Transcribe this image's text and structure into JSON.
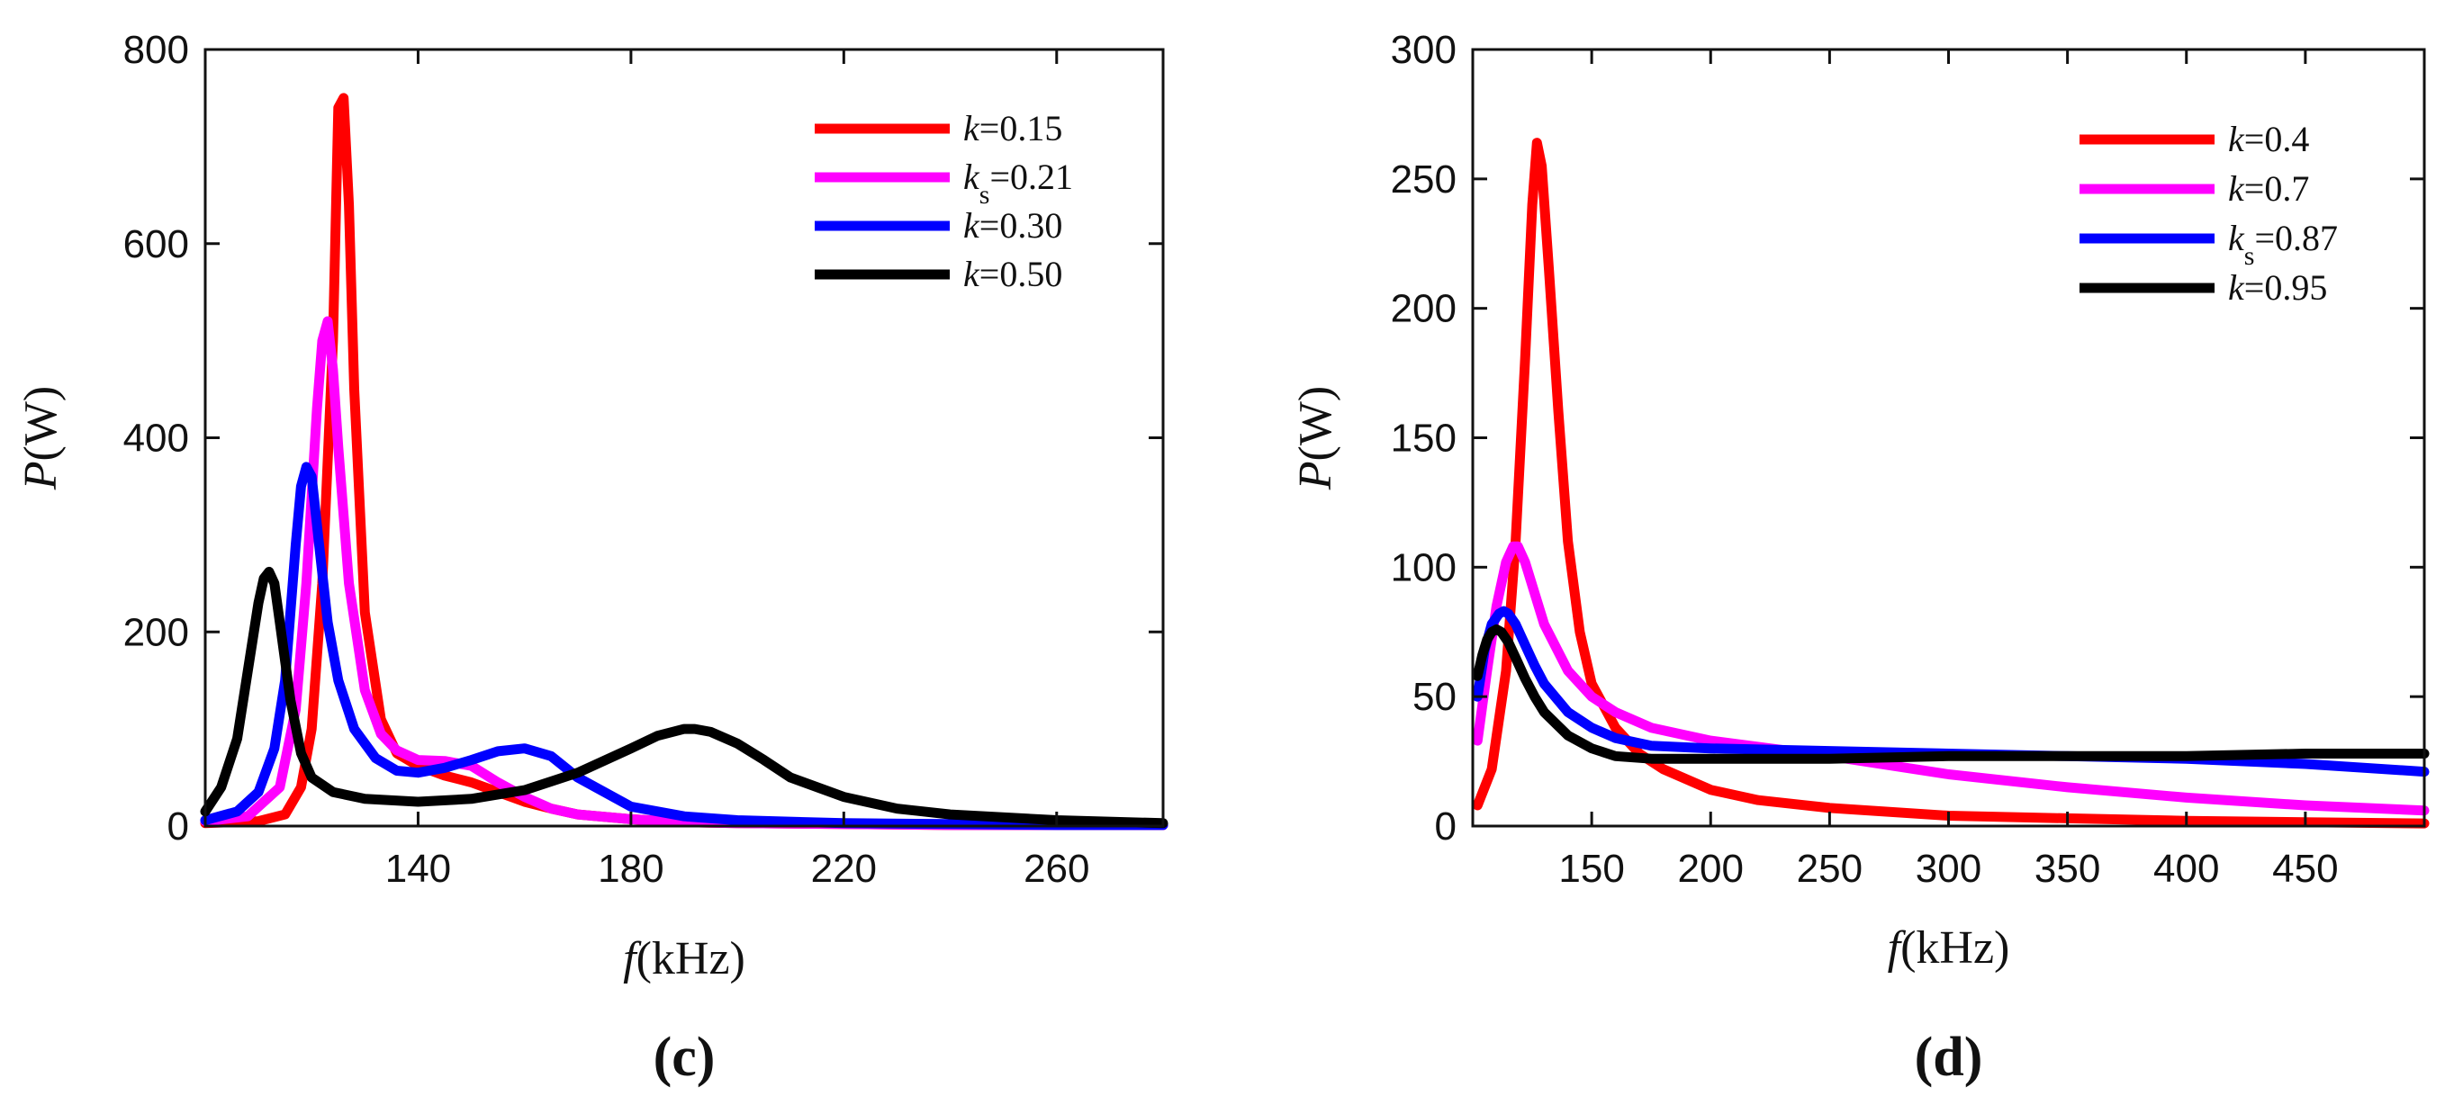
{
  "chart_data": [
    {
      "type": "line",
      "panel": "(c)",
      "xlabel_var": "f",
      "xlabel_unit": "(kHz)",
      "ylabel_var": "P",
      "ylabel_unit": "(W)",
      "xlim": [
        100,
        280
      ],
      "ylim": [
        0,
        800
      ],
      "xticks": [
        140,
        180,
        220,
        260
      ],
      "yticks": [
        0,
        200,
        400,
        600,
        800
      ],
      "legend_position": "top-right",
      "series": [
        {
          "name": "k=0.15",
          "legend_var": "k",
          "legend_sub": "",
          "legend_value": "=0.15",
          "color": "#ff0000",
          "x": [
            100,
            110,
            115,
            118,
            120,
            122,
            124,
            125,
            126,
            127,
            128,
            130,
            133,
            136,
            140,
            145,
            150,
            155,
            160,
            165,
            170,
            180,
            190,
            200,
            220,
            240,
            260,
            280
          ],
          "y": [
            3,
            5,
            12,
            40,
            100,
            250,
            500,
            740,
            750,
            640,
            450,
            220,
            110,
            75,
            62,
            52,
            45,
            35,
            25,
            18,
            12,
            7,
            4,
            3,
            2,
            1,
            1,
            1
          ]
        },
        {
          "name": "ks=0.21",
          "legend_var": "k",
          "legend_sub": "s",
          "legend_value": "=0.21",
          "color": "#ff00ff",
          "x": [
            100,
            108,
            114,
            117,
            119,
            121,
            122,
            123,
            124,
            125,
            127,
            130,
            133,
            136,
            140,
            145,
            150,
            155,
            160,
            165,
            170,
            180,
            190,
            200,
            220,
            240,
            260,
            280
          ],
          "y": [
            5,
            10,
            40,
            120,
            250,
            430,
            500,
            520,
            470,
            390,
            250,
            140,
            95,
            78,
            68,
            67,
            62,
            45,
            30,
            18,
            12,
            7,
            4,
            3,
            2,
            1,
            1,
            1
          ]
        },
        {
          "name": "k=0.30",
          "legend_var": "k",
          "legend_sub": "",
          "legend_value": "=0.30",
          "color": "#0000ff",
          "x": [
            100,
            106,
            110,
            113,
            115,
            116,
            117,
            118,
            119,
            120,
            121,
            123,
            125,
            128,
            132,
            136,
            140,
            145,
            150,
            155,
            160,
            165,
            170,
            180,
            190,
            200,
            220,
            240,
            260,
            280
          ],
          "y": [
            6,
            15,
            35,
            80,
            150,
            220,
            290,
            350,
            370,
            360,
            310,
            210,
            150,
            100,
            70,
            57,
            55,
            60,
            68,
            77,
            80,
            72,
            50,
            20,
            10,
            6,
            3,
            2,
            1,
            1
          ]
        },
        {
          "name": "k=0.50",
          "legend_var": "k",
          "legend_sub": "",
          "legend_value": "=0.50",
          "color": "#000000",
          "x": [
            100,
            103,
            106,
            108,
            110,
            111,
            112,
            113,
            114,
            116,
            118,
            120,
            124,
            130,
            140,
            150,
            160,
            170,
            180,
            185,
            190,
            192,
            195,
            200,
            205,
            210,
            220,
            230,
            240,
            260,
            280
          ],
          "y": [
            15,
            40,
            90,
            160,
            230,
            255,
            262,
            250,
            210,
            130,
            75,
            50,
            35,
            28,
            25,
            28,
            37,
            55,
            80,
            93,
            100,
            100,
            97,
            85,
            68,
            50,
            30,
            18,
            12,
            6,
            3
          ]
        }
      ]
    },
    {
      "type": "line",
      "panel": "(d)",
      "xlabel_var": "f",
      "xlabel_unit": "(kHz)",
      "ylabel_var": "P",
      "ylabel_unit": "(W)",
      "xlim": [
        100,
        500
      ],
      "ylim": [
        0,
        300
      ],
      "xticks": [
        150,
        200,
        250,
        300,
        350,
        400,
        450
      ],
      "yticks": [
        0,
        50,
        100,
        150,
        200,
        250,
        300
      ],
      "legend_position": "top-right",
      "series": [
        {
          "name": "k=0.4",
          "legend_var": "k",
          "legend_sub": "",
          "legend_value": "=0.4",
          "color": "#ff0000",
          "x": [
            102,
            108,
            114,
            118,
            122,
            125,
            127,
            129,
            132,
            136,
            140,
            145,
            150,
            160,
            170,
            180,
            200,
            220,
            250,
            300,
            350,
            400,
            450,
            500
          ],
          "y": [
            8,
            22,
            60,
            110,
            180,
            240,
            264,
            255,
            215,
            160,
            110,
            75,
            55,
            38,
            28,
            22,
            14,
            10,
            7,
            4,
            3,
            2,
            1.5,
            1
          ]
        },
        {
          "name": "k=0.7",
          "legend_var": "k",
          "legend_sub": "",
          "legend_value": "=0.7",
          "color": "#ff00ff",
          "x": [
            102,
            106,
            110,
            114,
            117,
            119,
            122,
            126,
            130,
            140,
            150,
            160,
            175,
            200,
            225,
            250,
            300,
            350,
            400,
            450,
            500
          ],
          "y": [
            33,
            60,
            85,
            102,
            108,
            108,
            102,
            90,
            78,
            60,
            50,
            44,
            38,
            33,
            30,
            27,
            20,
            15,
            11,
            8,
            6
          ]
        },
        {
          "name": "ks=0.87",
          "legend_var": "k",
          "legend_sub": "s",
          "legend_value": "=0.87",
          "color": "#0000ff",
          "x": [
            102,
            105,
            108,
            111,
            113,
            115,
            118,
            122,
            126,
            130,
            140,
            150,
            160,
            175,
            200,
            250,
            300,
            350,
            400,
            450,
            500
          ],
          "y": [
            50,
            68,
            78,
            82,
            83,
            82,
            78,
            70,
            62,
            55,
            44,
            38,
            34,
            31,
            30,
            29,
            28,
            27,
            26,
            24,
            21
          ]
        },
        {
          "name": "k=0.95",
          "legend_var": "k",
          "legend_sub": "",
          "legend_value": "=0.95",
          "color": "#000000",
          "x": [
            102,
            104,
            106,
            108,
            110,
            112,
            115,
            118,
            122,
            126,
            130,
            140,
            150,
            160,
            175,
            200,
            250,
            300,
            350,
            400,
            450,
            500
          ],
          "y": [
            58,
            66,
            72,
            75,
            76,
            75,
            71,
            65,
            57,
            50,
            44,
            35,
            30,
            27,
            26,
            26,
            26,
            27,
            27,
            27,
            28,
            28
          ]
        }
      ]
    }
  ]
}
